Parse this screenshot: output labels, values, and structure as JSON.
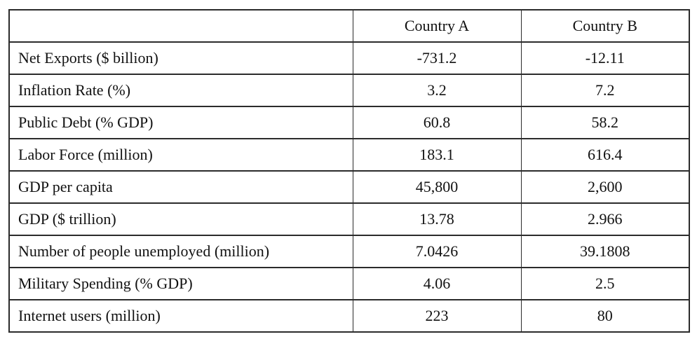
{
  "table": {
    "columns": [
      "",
      "Country A",
      "Country B"
    ],
    "rows": [
      {
        "label": "Net Exports ($ billion)",
        "country_a": "-731.2",
        "country_b": "-12.11"
      },
      {
        "label": "Inflation Rate (%)",
        "country_a": "3.2",
        "country_b": "7.2"
      },
      {
        "label": "Public Debt (% GDP)",
        "country_a": "60.8",
        "country_b": "58.2"
      },
      {
        "label": "Labor Force (million)",
        "country_a": "183.1",
        "country_b": "616.4"
      },
      {
        "label": "GDP per capita",
        "country_a": "45,800",
        "country_b": "2,600"
      },
      {
        "label": "GDP ($ trillion)",
        "country_a": "13.78",
        "country_b": "2.966"
      },
      {
        "label": "Number of people unemployed (million)",
        "country_a": "7.0426",
        "country_b": "39.1808"
      },
      {
        "label": "Military Spending (% GDP)",
        "country_a": "4.06",
        "country_b": "2.5"
      },
      {
        "label": "Internet users (million)",
        "country_a": "223",
        "country_b": "80"
      }
    ],
    "colors": {
      "border": "#2b2b2b",
      "text": "#111111",
      "background": "#ffffff"
    }
  }
}
